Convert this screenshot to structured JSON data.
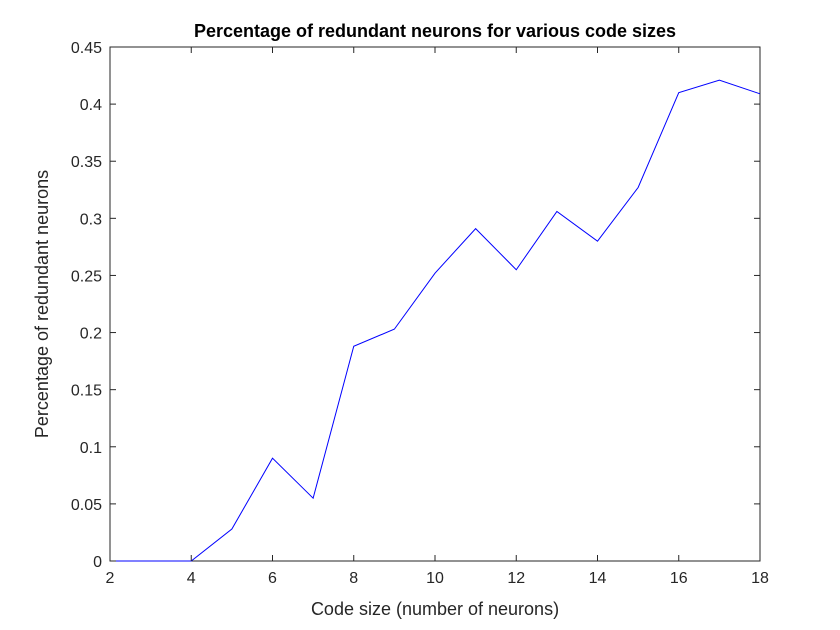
{
  "chart_data": {
    "type": "line",
    "title": "Percentage of redundant neurons for various code sizes",
    "xlabel": "Code size (number of neurons)",
    "ylabel": "Percentage of redundant neurons",
    "xlim": [
      2,
      18
    ],
    "ylim": [
      0,
      0.45
    ],
    "xticks": [
      2,
      4,
      6,
      8,
      10,
      12,
      14,
      16,
      18
    ],
    "yticks": [
      0,
      0.05,
      0.1,
      0.15,
      0.2,
      0.25,
      0.3,
      0.35,
      0.4,
      0.45
    ],
    "xtick_labels": [
      "2",
      "4",
      "6",
      "8",
      "10",
      "12",
      "14",
      "16",
      "18"
    ],
    "ytick_labels": [
      "0",
      "0.05",
      "0.1",
      "0.15",
      "0.2",
      "0.25",
      "0.3",
      "0.35",
      "0.4",
      "0.45"
    ],
    "grid": false,
    "legend": "none",
    "series": [
      {
        "color": "#0000ff",
        "x": [
          2,
          3,
          4,
          5,
          6,
          7,
          8,
          9,
          10,
          11,
          12,
          13,
          14,
          15,
          16,
          17,
          18
        ],
        "y": [
          0,
          0,
          0,
          0.028,
          0.09,
          0.055,
          0.188,
          0.203,
          0.252,
          0.291,
          0.255,
          0.306,
          0.28,
          0.327,
          0.41,
          0.421,
          0.409
        ]
      }
    ]
  }
}
